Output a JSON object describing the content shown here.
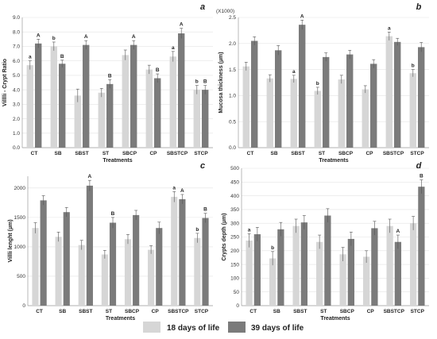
{
  "colors": {
    "d18": "#d6d6d6",
    "d39": "#7b7b7b",
    "grid": "#e3e3e3",
    "axis": "#9a9a9a",
    "err": "#555555"
  },
  "legend": {
    "label_18": "18 days  of life",
    "label_39": "39 days of life"
  },
  "chart_data": [
    {
      "type": "bar",
      "panel": "a",
      "title": "",
      "xlabel": "Treatments",
      "ylabel": "Villlli - Crypt Ratio",
      "ylim": [
        0,
        9
      ],
      "yticks": [
        0,
        1,
        2,
        3,
        4,
        5,
        6,
        7,
        8,
        9
      ],
      "ytick_labels": [
        "0.0",
        "1.0",
        "2.0",
        "3.0",
        "4.0",
        "5.0",
        "6.0",
        "7.0",
        "8.0",
        "9.0"
      ],
      "categories": [
        "CT",
        "SB",
        "SBST",
        "ST",
        "SBCP",
        "CP",
        "SBSTCP",
        "STCP"
      ],
      "series": [
        {
          "name": "18 days  of life",
          "values": [
            5.7,
            7.0,
            3.6,
            3.8,
            6.4,
            5.4,
            6.3,
            4.0
          ],
          "errors": [
            0.3,
            0.3,
            0.45,
            0.3,
            0.35,
            0.3,
            0.35,
            0.3
          ],
          "labels": [
            "a",
            "b",
            "",
            "",
            "",
            "",
            "a",
            "b"
          ]
        },
        {
          "name": "39 days of life",
          "values": [
            7.2,
            5.8,
            7.1,
            4.4,
            7.1,
            4.8,
            7.9,
            4.0
          ],
          "errors": [
            0.3,
            0.25,
            0.3,
            0.3,
            0.3,
            0.3,
            0.35,
            0.3
          ],
          "labels": [
            "A",
            "B",
            "A",
            "B",
            "A",
            "B",
            "A",
            "B"
          ]
        }
      ]
    },
    {
      "type": "bar",
      "panel": "b",
      "title": "",
      "xlabel": "Treatments",
      "ylabel": "Mucosa thickness (µm)",
      "yscale_note": "(X1000)",
      "ylim": [
        0,
        2.5
      ],
      "yticks": [
        0,
        0.5,
        1.0,
        1.5,
        2.0,
        2.5
      ],
      "ytick_labels": [
        "0.0",
        "0.5",
        "1.0",
        "1.5",
        "2.0",
        "2.5"
      ],
      "categories": [
        "CT",
        "SB",
        "SBST",
        "ST",
        "SBCP",
        "CP",
        "SBSTCP",
        "STCP"
      ],
      "series": [
        {
          "name": "18 days  of life",
          "values": [
            1.56,
            1.33,
            1.32,
            1.09,
            1.31,
            1.12,
            2.14,
            1.43
          ],
          "errors": [
            0.08,
            0.07,
            0.07,
            0.07,
            0.08,
            0.07,
            0.08,
            0.07
          ],
          "labels": [
            "",
            "",
            "a",
            "b",
            "",
            "",
            "a",
            "b"
          ]
        },
        {
          "name": "39 days of life",
          "values": [
            2.05,
            1.87,
            2.36,
            1.74,
            1.79,
            1.61,
            2.03,
            1.93
          ],
          "errors": [
            0.08,
            0.09,
            0.09,
            0.08,
            0.08,
            0.08,
            0.07,
            0.09
          ],
          "labels": [
            "",
            "",
            "A",
            "",
            "",
            "",
            "",
            ""
          ]
        }
      ]
    },
    {
      "type": "bar",
      "panel": "c",
      "title": "",
      "xlabel": "Treatments",
      "ylabel": "Villli lenght (µm)",
      "ylim": [
        0,
        2200
      ],
      "yticks": [
        0,
        500,
        1000,
        1500,
        2000
      ],
      "ytick_labels": [
        "0",
        "500",
        "1000",
        "1500",
        "2000"
      ],
      "categories": [
        "CT",
        "SB",
        "SBST",
        "ST",
        "SBCP",
        "CP",
        "SBSTCP",
        "STCP"
      ],
      "series": [
        {
          "name": "18 days  of life",
          "values": [
            1320,
            1170,
            1030,
            870,
            1130,
            950,
            1850,
            1150
          ],
          "errors": [
            90,
            80,
            80,
            70,
            80,
            70,
            90,
            80
          ],
          "labels": [
            "",
            "",
            "",
            "",
            "",
            "",
            "a",
            "b"
          ]
        },
        {
          "name": "39 days of life",
          "values": [
            1790,
            1590,
            2040,
            1410,
            1540,
            1320,
            1810,
            1490
          ],
          "errors": [
            80,
            80,
            90,
            90,
            80,
            100,
            80,
            80
          ],
          "labels": [
            "",
            "",
            "A",
            "B",
            "",
            "",
            "A",
            "B"
          ]
        }
      ]
    },
    {
      "type": "bar",
      "panel": "d",
      "title": "",
      "xlabel": "Treatments",
      "ylabel": "Crypts depth (µm)",
      "ylim": [
        0,
        500
      ],
      "yticks": [
        0,
        50,
        100,
        150,
        200,
        250,
        300,
        350,
        400,
        450,
        500
      ],
      "ytick_labels": [
        "0",
        "50",
        "100",
        "150",
        "200",
        "250",
        "300",
        "350",
        "400",
        "450",
        "500"
      ],
      "categories": [
        "CT",
        "SB",
        "SBST",
        "ST",
        "SBCP",
        "CP",
        "SBSTCP",
        "STCP"
      ],
      "series": [
        {
          "name": "18 days  of life",
          "values": [
            237,
            172,
            290,
            232,
            187,
            178,
            290,
            300
          ],
          "errors": [
            25,
            25,
            25,
            25,
            25,
            22,
            25,
            25
          ],
          "labels": [
            "a",
            "b",
            "",
            "",
            "",
            "",
            "",
            ""
          ]
        },
        {
          "name": "39 days of life",
          "values": [
            260,
            278,
            303,
            328,
            243,
            282,
            232,
            433
          ],
          "errors": [
            25,
            25,
            25,
            25,
            25,
            25,
            25,
            25
          ],
          "labels": [
            "",
            "",
            "",
            "",
            "",
            "",
            "A",
            "B"
          ]
        }
      ]
    }
  ]
}
